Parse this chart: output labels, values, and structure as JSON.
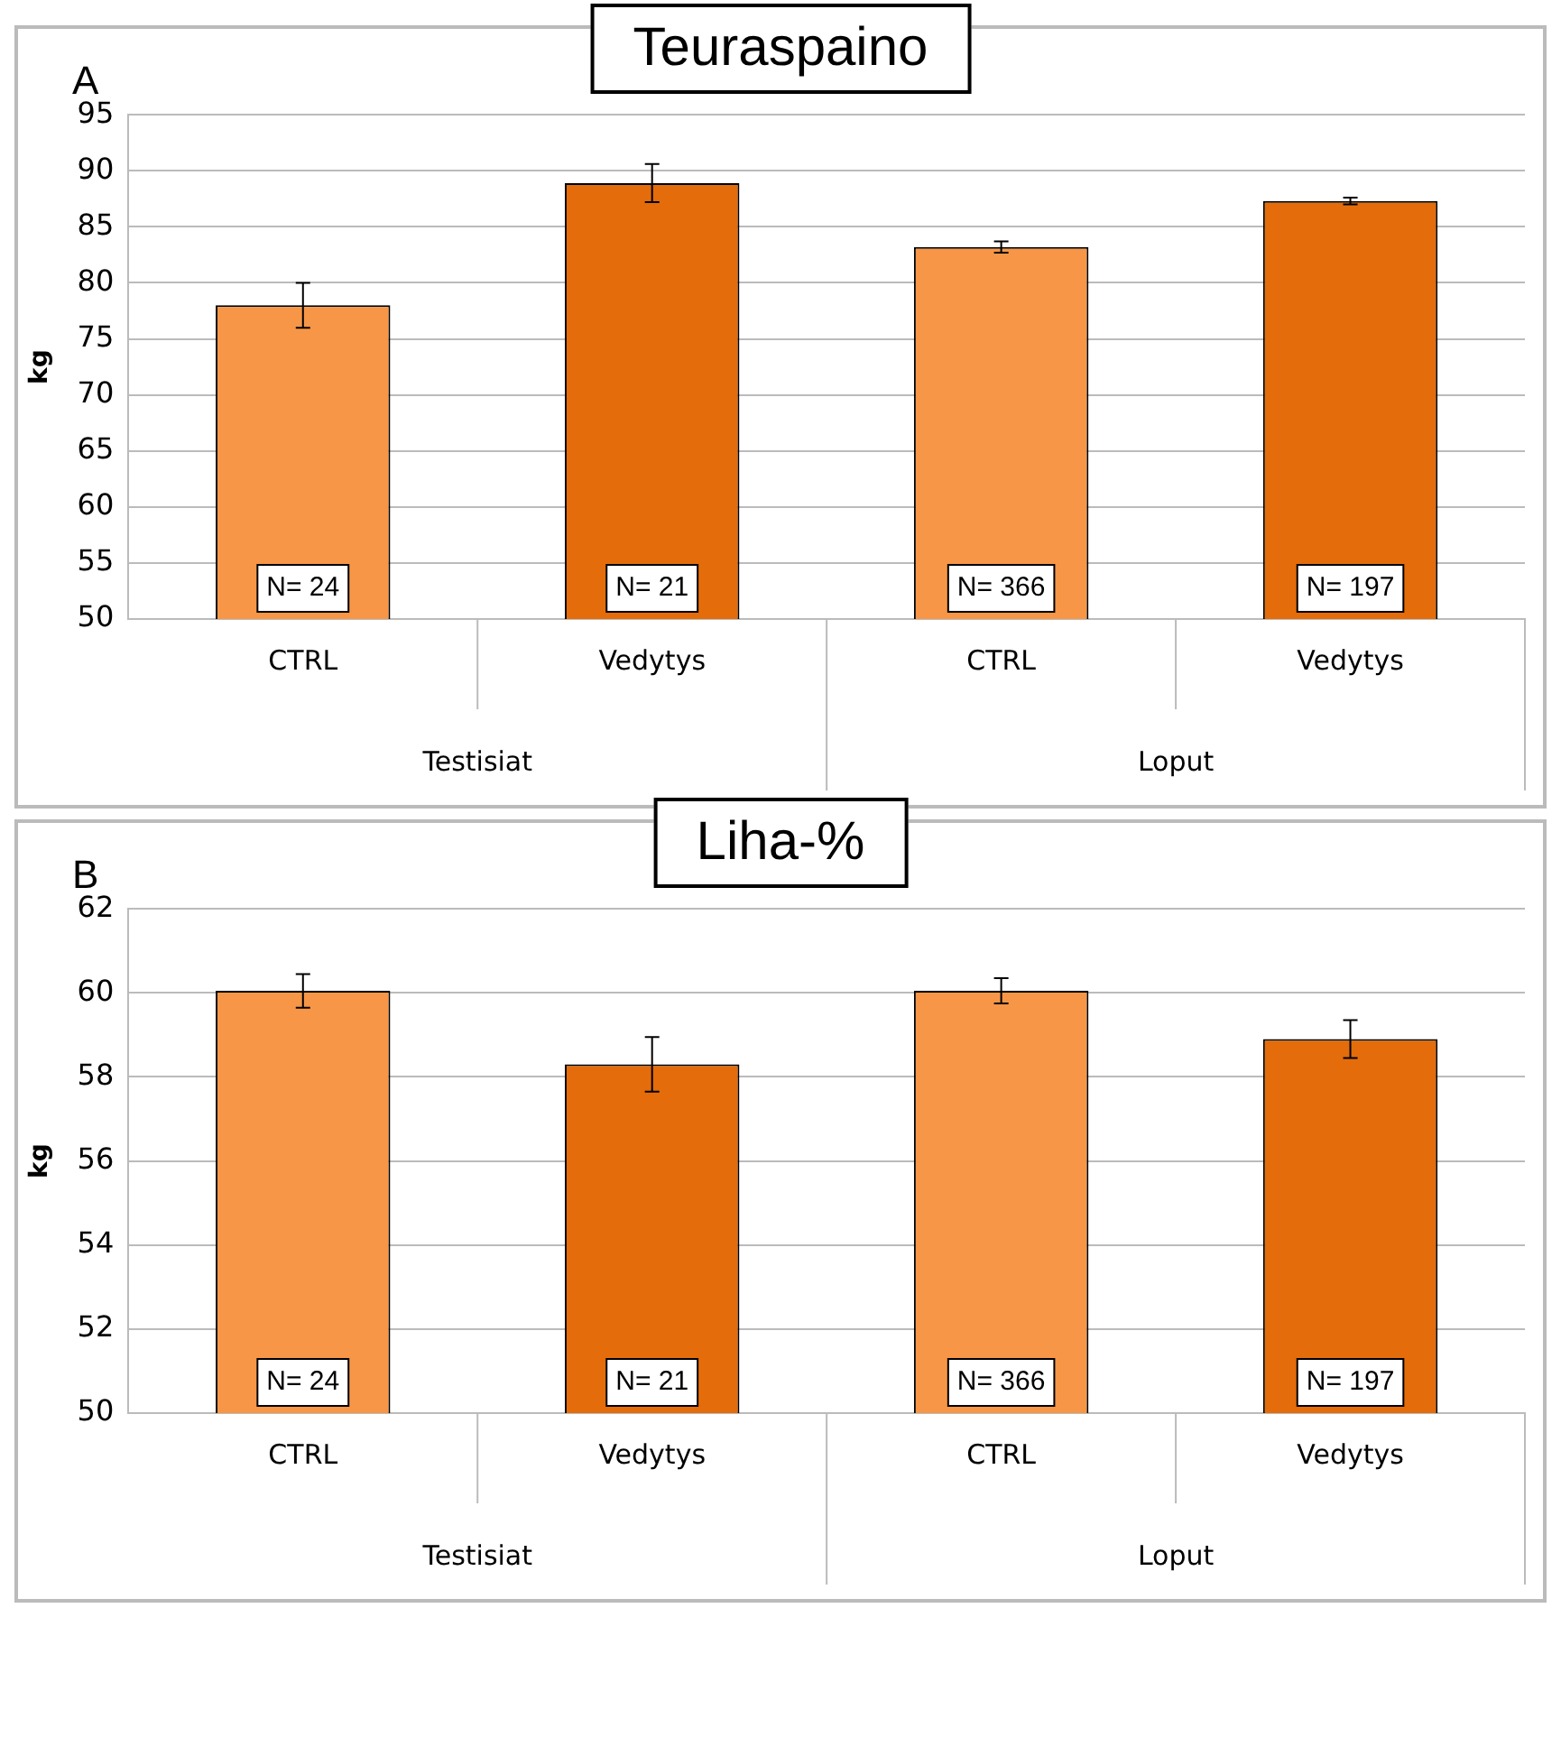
{
  "chart_data": [
    {
      "type": "bar",
      "title": "Teuraspaino",
      "ylabel": "kg",
      "categories": [
        "CTRL",
        "Vedytys",
        "CTRL",
        "Vedytys"
      ],
      "values": [
        78.0,
        88.9,
        83.2,
        87.3
      ],
      "errors": [
        2.0,
        1.7,
        0.5,
        0.3
      ],
      "colors": [
        "#f79646",
        "#e46c0a",
        "#f79646",
        "#e46c0a"
      ],
      "ylim": [
        50,
        95
      ],
      "yticks": [
        50,
        55,
        60,
        65,
        70,
        75,
        80,
        85,
        90,
        95
      ],
      "grid": "y",
      "legend": false,
      "annotations": [
        "A",
        "N= 24",
        "N= 21",
        "N= 366",
        "N= 197",
        "Testisiat",
        "Loput"
      ]
    },
    {
      "type": "bar",
      "title": "Liha-%",
      "ylabel": "kg",
      "categories": [
        "CTRL",
        "Vedytys",
        "CTRL",
        "Vedytys"
      ],
      "values": [
        60.05,
        58.3,
        60.05,
        58.9
      ],
      "errors": [
        0.4,
        0.65,
        0.3,
        0.45
      ],
      "colors": [
        "#f79646",
        "#e46c0a",
        "#f79646",
        "#e46c0a"
      ],
      "ylim": [
        50,
        62
      ],
      "yticks": [
        50,
        52,
        54,
        56,
        58,
        60,
        62
      ],
      "grid": "y",
      "legend": false,
      "annotations": [
        "B",
        "N= 24",
        "N= 21",
        "N= 366",
        "N= 197",
        "Testisiat",
        "Loput"
      ]
    }
  ]
}
